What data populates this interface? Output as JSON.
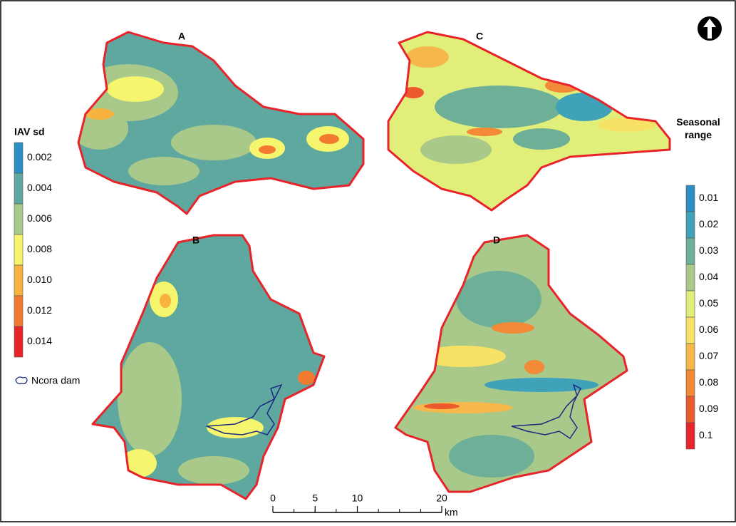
{
  "panels": [
    {
      "label": "A"
    },
    {
      "label": "B"
    },
    {
      "label": "C"
    },
    {
      "label": "D"
    }
  ],
  "legend_left": {
    "title": "IAV sd",
    "entries": [
      {
        "label": "0.002",
        "color": "#2a8fc4"
      },
      {
        "label": "0.004",
        "color": "#5fa8a0"
      },
      {
        "label": "0.006",
        "color": "#a8c98a"
      },
      {
        "label": "0.008",
        "color": "#f5f56e"
      },
      {
        "label": "0.010",
        "color": "#f7b240"
      },
      {
        "label": "0.012",
        "color": "#f27b30"
      },
      {
        "label": "0.014",
        "color": "#e8232a"
      }
    ]
  },
  "dam_legend": {
    "label": "Ncora dam"
  },
  "legend_right": {
    "title": "Seasonal range",
    "entries": [
      {
        "label": "0.01",
        "color": "#2b8ec4"
      },
      {
        "label": "0.02",
        "color": "#3fa2b8"
      },
      {
        "label": "0.03",
        "color": "#6eaf98"
      },
      {
        "label": "0.04",
        "color": "#a9c98a"
      },
      {
        "label": "0.05",
        "color": "#e1ee7a"
      },
      {
        "label": "0.06",
        "color": "#f8e266"
      },
      {
        "label": "0.07",
        "color": "#f6b84a"
      },
      {
        "label": "0.08",
        "color": "#f28a38"
      },
      {
        "label": "0.09",
        "color": "#eb5a2c"
      },
      {
        "label": "0.1",
        "color": "#e8232a"
      }
    ]
  },
  "scale_bar": {
    "ticks": [
      0,
      5,
      10,
      20
    ],
    "unit": "km"
  }
}
